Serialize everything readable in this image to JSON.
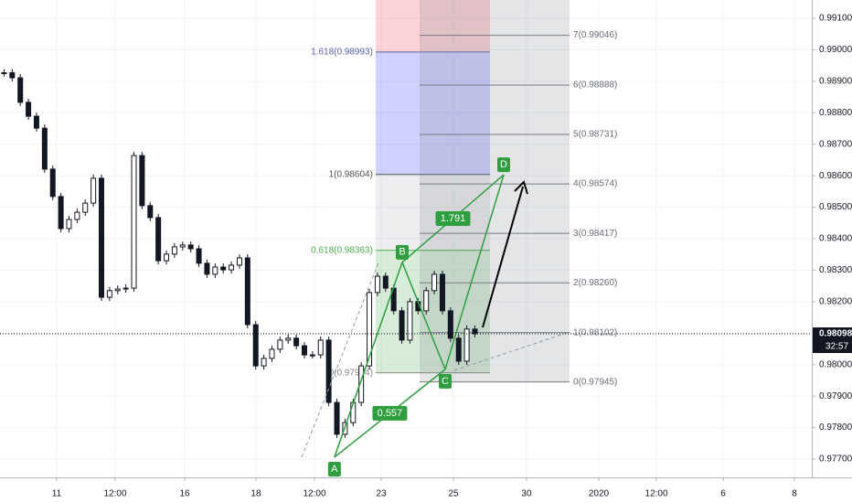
{
  "chart_data": {
    "type": "candlestick",
    "x": [
      0.5,
      1.5,
      2.5,
      3.5,
      4.5,
      5.5,
      6.5,
      7.5,
      8.5,
      9.5,
      10.5,
      11.5,
      12.5,
      13.5,
      14.5,
      15.5,
      16.5,
      17.5,
      18.5,
      19.5,
      20.5,
      21.5,
      22.5,
      23.5,
      24.5,
      25.5,
      26.5,
      27.5,
      28.5,
      29.5,
      30.5,
      31.5,
      32.5,
      33.5,
      34.5,
      35.5,
      36.5,
      37.5,
      38.5,
      39.5,
      40.5,
      41.5,
      42.5,
      43.5,
      44.5,
      45.5,
      46.5,
      47.5,
      48.5,
      49.5,
      50.5,
      51.5,
      52.5,
      53.5,
      54.5,
      55.5,
      56.5,
      57.5,
      58.5
    ],
    "close": [
      0.98927,
      0.98911,
      0.98833,
      0.98789,
      0.98751,
      0.98621,
      0.98534,
      0.98432,
      0.98461,
      0.98484,
      0.98513,
      0.98592,
      0.98214,
      0.98235,
      0.9824,
      0.98243,
      0.98664,
      0.98505,
      0.98467,
      0.9833,
      0.98351,
      0.98374,
      0.9838,
      0.98368,
      0.98322,
      0.98287,
      0.9831,
      0.98301,
      0.98316,
      0.98339,
      0.98127,
      0.97996,
      0.9802,
      0.98049,
      0.98078,
      0.98084,
      0.9806,
      0.98031,
      0.98031,
      0.98078,
      0.9788,
      0.97779,
      0.97816,
      0.9788,
      0.97996,
      0.98229,
      0.98281,
      0.98243,
      0.98171,
      0.98078,
      0.982,
      0.98171,
      0.98235,
      0.98287,
      0.98171,
      0.98084,
      0.98011,
      0.98113,
      0.98098
    ],
    "color": "#131722",
    "xlim": [
      0,
      100
    ],
    "ylim": [
      0.97642,
      0.99158
    ],
    "grid": true,
    "xticks": [
      {
        "value": 6.98,
        "label": "11"
      },
      {
        "value": 14.19,
        "label": "12:00"
      },
      {
        "value": 22.75,
        "label": "16"
      },
      {
        "value": 31.53,
        "label": "18"
      },
      {
        "value": 38.74,
        "label": "12:00"
      },
      {
        "value": 46.96,
        "label": "23"
      },
      {
        "value": 55.86,
        "label": "25"
      },
      {
        "value": 64.86,
        "label": "30"
      },
      {
        "value": 73.76,
        "label": "2020"
      },
      {
        "value": 80.86,
        "label": "12:00"
      },
      {
        "value": 89.08,
        "label": "6"
      },
      {
        "value": 97.86,
        "label": "8"
      }
    ],
    "yticks": [
      {
        "value": 0.991,
        "label": "0.99100"
      },
      {
        "value": 0.99,
        "label": "0.99000"
      },
      {
        "value": 0.989,
        "label": "0.98900"
      },
      {
        "value": 0.988,
        "label": "0.98800"
      },
      {
        "value": 0.987,
        "label": "0.98700"
      },
      {
        "value": 0.986,
        "label": "0.98600"
      },
      {
        "value": 0.985,
        "label": "0.98500"
      },
      {
        "value": 0.984,
        "label": "0.98400"
      },
      {
        "value": 0.983,
        "label": "0.98300"
      },
      {
        "value": 0.982,
        "label": "0.98200"
      },
      {
        "value": 0.981,
        "label": "0.98100"
      },
      {
        "value": 0.98,
        "label": "0.98000"
      },
      {
        "value": 0.979,
        "label": "0.97900"
      },
      {
        "value": 0.978,
        "label": "0.97800"
      },
      {
        "value": 0.977,
        "label": "0.97700"
      }
    ],
    "last_price": {
      "value": 0.98098,
      "label": "0.98098"
    },
    "countdown": "32:57",
    "fib_retracement": {
      "x_range": [
        46.28,
        60.36
      ],
      "levels": [
        {
          "value": 0.98993,
          "label": "1.618(0.98993)"
        },
        {
          "value": 0.98604,
          "label": "1(0.98604)"
        },
        {
          "value": 0.98363,
          "label": "0.618(0.98363)"
        },
        {
          "value": 0.97974,
          "label": "0(0.97974)"
        }
      ]
    },
    "fib_extension": {
      "x_range": [
        51.69,
        70.16
      ],
      "levels": [
        {
          "value": 0.99046,
          "label": "7(0.99046)"
        },
        {
          "value": 0.98888,
          "label": "6(0.98888)"
        },
        {
          "value": 0.98731,
          "label": "5(0.98731)"
        },
        {
          "value": 0.98574,
          "label": "4(0.98574)"
        },
        {
          "value": 0.98417,
          "label": "3(0.98417)"
        },
        {
          "value": 0.9826,
          "label": "2(0.98260)"
        },
        {
          "value": 0.98102,
          "label": "1(0.98102)"
        },
        {
          "value": 0.97945,
          "label": "0(0.97945)"
        }
      ]
    },
    "pattern": {
      "points": [
        {
          "label": "A",
          "x": 41.2,
          "price": 0.97706
        },
        {
          "label": "B",
          "x": 49.55,
          "price": 0.98325
        },
        {
          "label": "C",
          "x": 54.84,
          "price": 0.97985
        },
        {
          "label": "D",
          "x": 62.05,
          "price": 0.98603
        }
      ],
      "ratios": [
        0.557,
        1.791
      ]
    }
  }
}
